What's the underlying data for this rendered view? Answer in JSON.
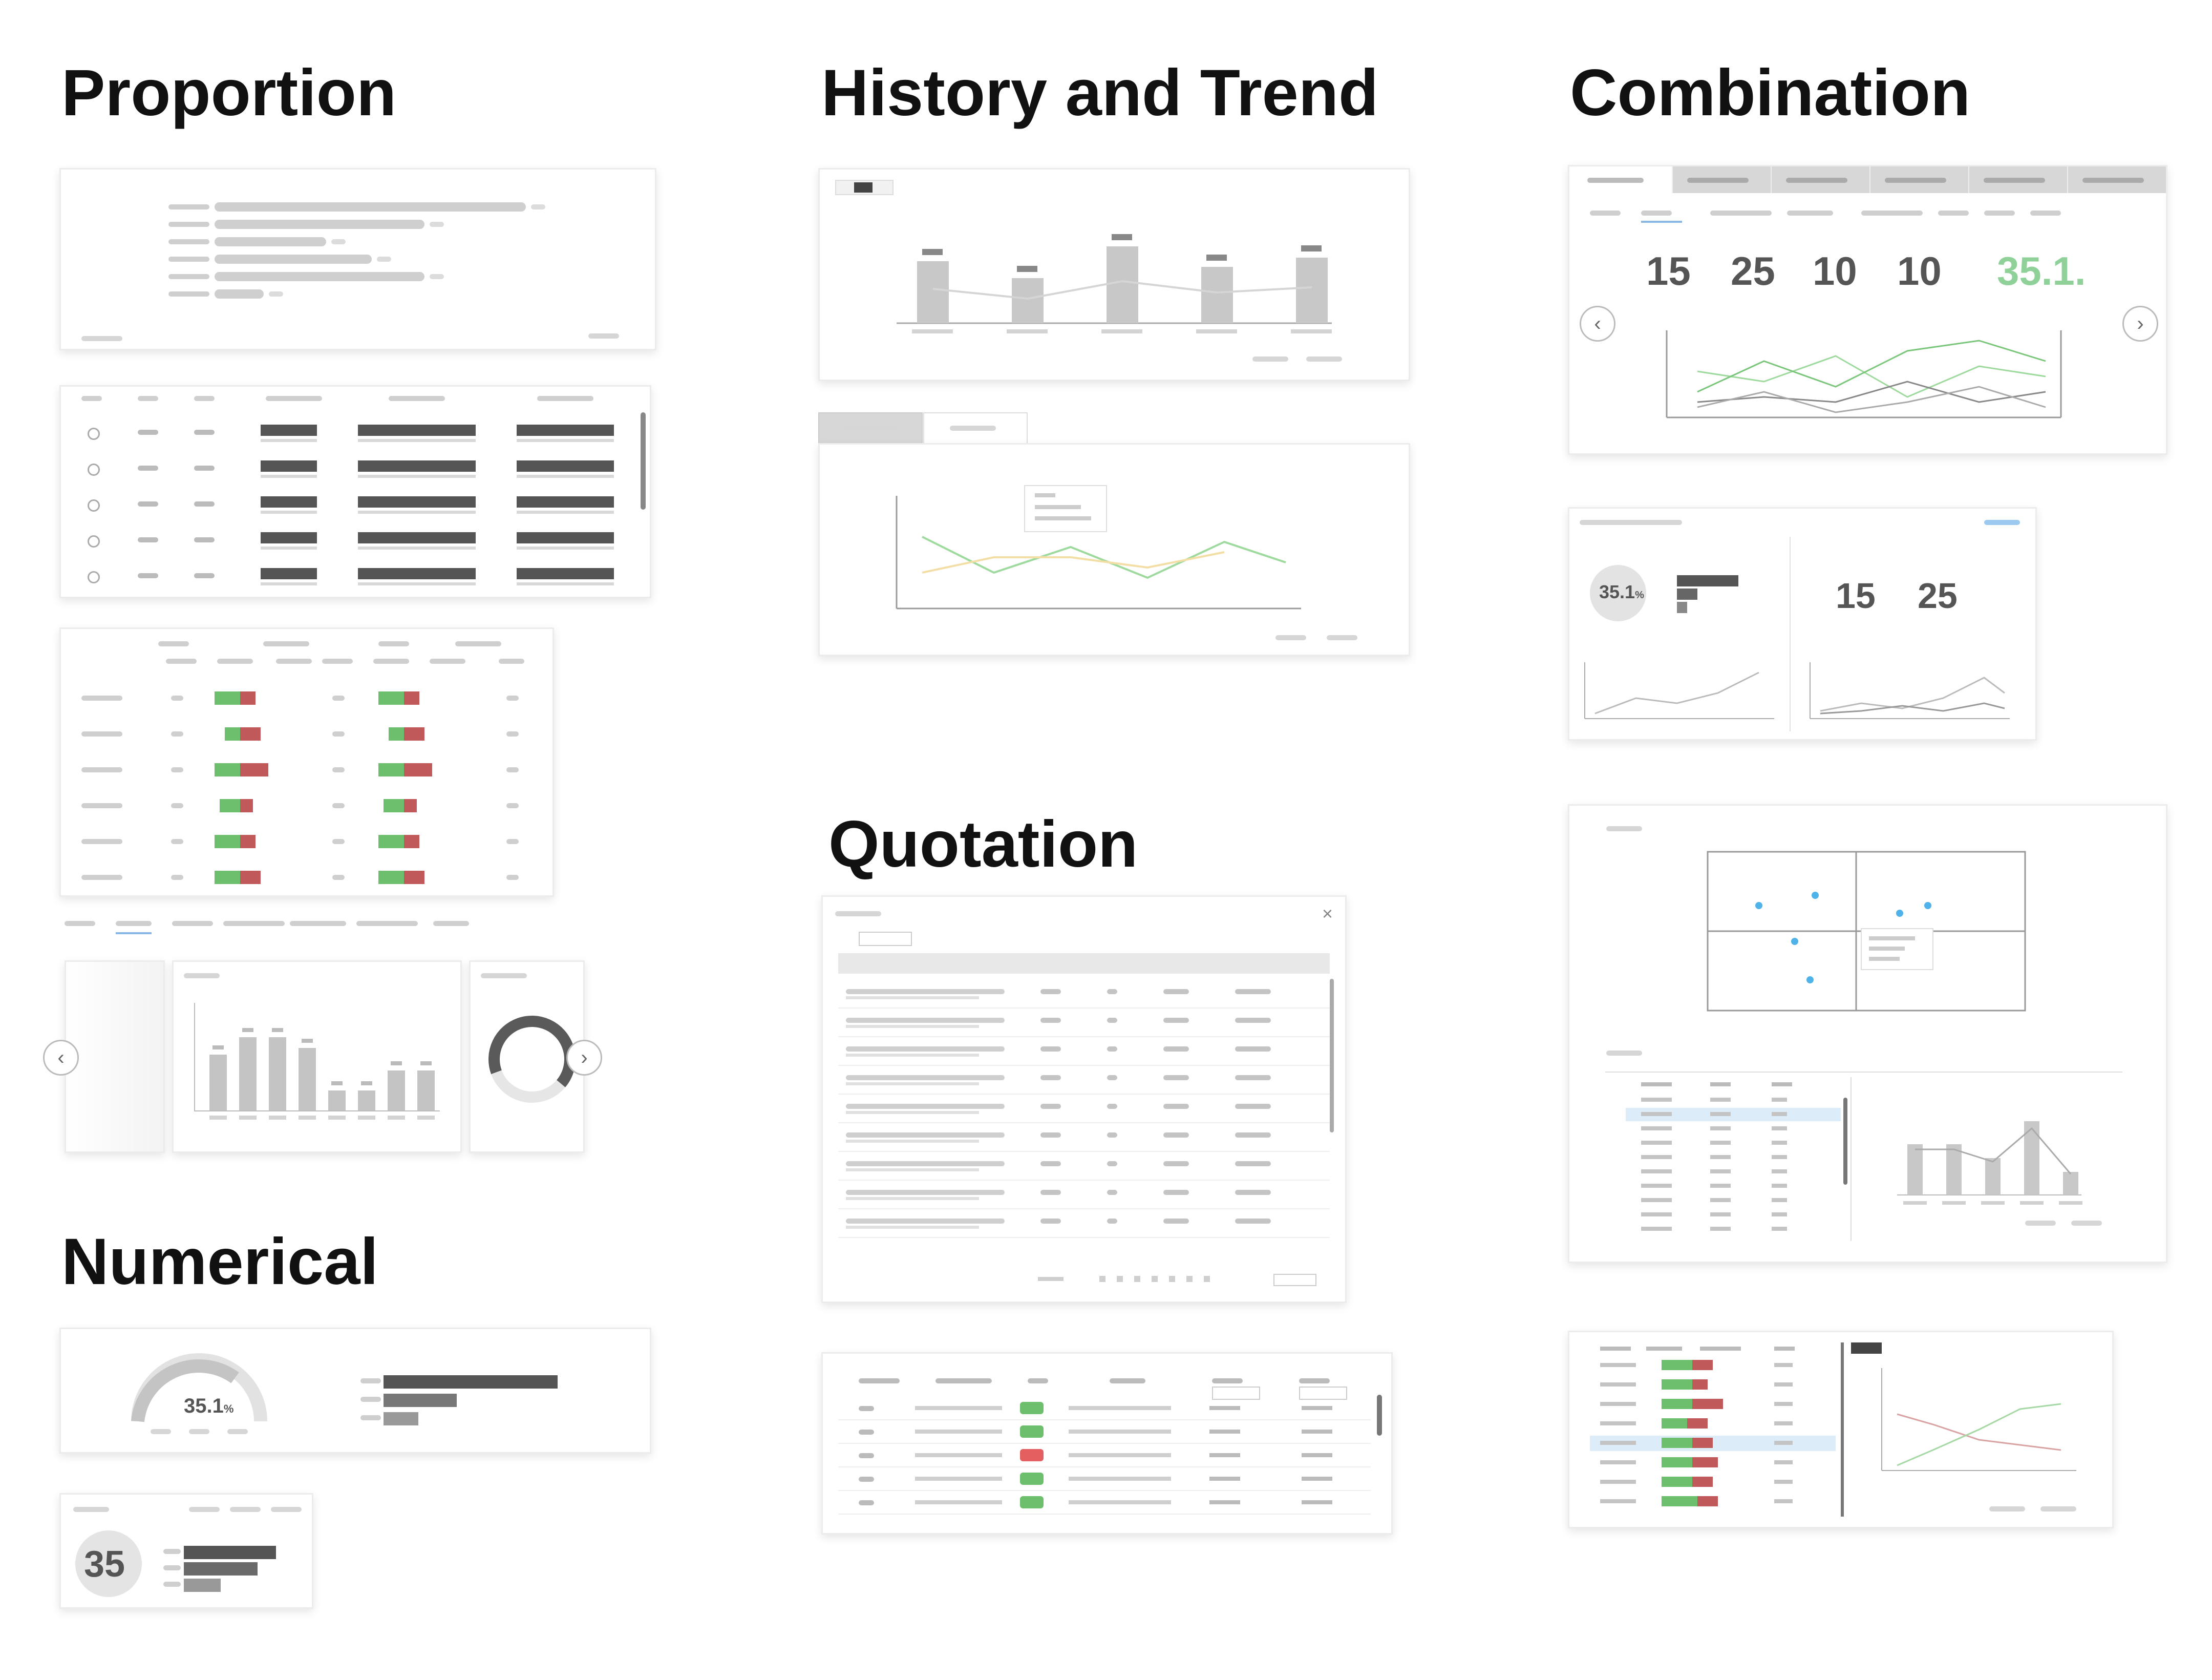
{
  "headings": {
    "proportion": "Proportion",
    "history": "History and Trend",
    "combination": "Combination",
    "quotation": "Quotation",
    "numerical": "Numerical"
  },
  "numbers": {
    "gauge_value": "35.1",
    "gauge_unit": "%",
    "circle_value": "35",
    "combo_metric_1": "15",
    "combo_metric_2": "25",
    "combo_metric_3": "10",
    "combo_metric_4": "10",
    "combo_metric_5": "35.1",
    "combo_metric_5_suffix": ".",
    "mini_circle": "35.1",
    "mini_circle_unit": "%",
    "mini_metric_1": "15",
    "mini_metric_2": "25"
  },
  "colors": {
    "green": "#6dbf6d",
    "red": "#c05a5a",
    "light_green": "#8fd18f",
    "dark_bar": "#555555",
    "gray_bar": "#bdbdbd",
    "blue_point": "#4fb3ea",
    "green_metric": "#7ecf8a"
  },
  "proportion_bars": {
    "values": [
      0.95,
      0.64,
      0.34,
      0.48,
      0.64,
      0.15
    ]
  },
  "history_bar": {
    "values": [
      0.55,
      0.4,
      0.68,
      0.5,
      0.58
    ]
  },
  "proportion_small_bar": {
    "values": [
      0.42,
      0.55,
      0.55,
      0.47,
      0.15,
      0.15,
      0.3,
      0.3
    ]
  },
  "numerical_bars": {
    "values": [
      1.0,
      0.42,
      0.2
    ]
  },
  "circle_bars": {
    "values": [
      1.0,
      0.8,
      0.4
    ]
  },
  "combo_bars": {
    "values": [
      0.55,
      0.55,
      0.4,
      0.8,
      0.25
    ]
  },
  "icons": {
    "left_arrow": "‹",
    "right_arrow": "›",
    "close": "×"
  }
}
